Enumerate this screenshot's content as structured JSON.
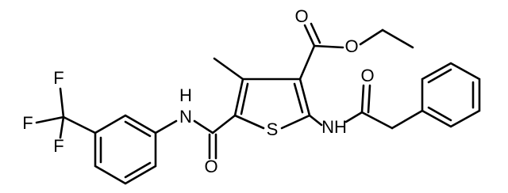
{
  "atoms": [
    {
      "label": "F"
    },
    {
      "label": "F"
    },
    {
      "label": "F"
    },
    {
      "label": "H"
    },
    {
      "label": "N"
    },
    {
      "label": "O"
    },
    {
      "label": "S"
    },
    {
      "label": "O"
    },
    {
      "label": "O"
    },
    {
      "label": "NH"
    },
    {
      "label": "O"
    }
  ]
}
